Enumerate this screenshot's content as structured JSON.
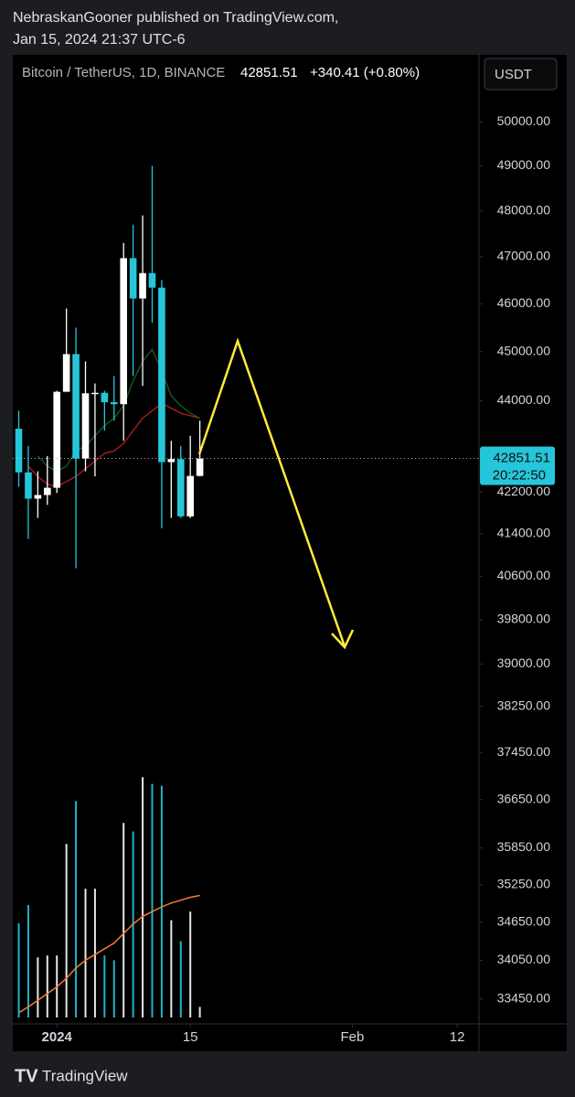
{
  "header": {
    "publisher": "NebraskanGooner published on TradingView.com,",
    "date": "Jan 15, 2024 21:37 UTC-6"
  },
  "footer": {
    "brand": "TradingView"
  },
  "chart_data": {
    "type": "candlestick",
    "symbol": "Bitcoin / TetherUS, 1D, BINANCE",
    "last_price": 42851.51,
    "change": "+340.41 (+0.80%)",
    "currency": "USDT",
    "countdown": "20:22:50",
    "x": [
      "2023-12-28",
      "2023-12-29",
      "2023-12-30",
      "2023-12-31",
      "2024-01-01",
      "2024-01-02",
      "2024-01-03",
      "2024-01-04",
      "2024-01-05",
      "2024-01-06",
      "2024-01-07",
      "2024-01-08",
      "2024-01-09",
      "2024-01-10",
      "2024-01-11",
      "2024-01-12",
      "2024-01-13",
      "2024-01-14",
      "2024-01-15",
      "2024-01-16"
    ],
    "open": [
      43440,
      42580,
      42070,
      42140,
      42280,
      44180,
      44950,
      42850,
      44150,
      44160,
      43970,
      43930,
      46970,
      46110,
      46650,
      46340,
      42780,
      42840,
      41730,
      42510
    ],
    "high": [
      43800,
      43100,
      42600,
      42900,
      44200,
      45900,
      45500,
      44800,
      44350,
      44200,
      44500,
      47300,
      47700,
      47900,
      49000,
      46500,
      43200,
      43100,
      43300,
      43600
    ],
    "low": [
      42300,
      41300,
      41700,
      41950,
      42180,
      44200,
      40750,
      42600,
      42500,
      43400,
      43600,
      43200,
      44500,
      44300,
      45600,
      41500,
      41700,
      41700,
      41700,
      42500
    ],
    "close": [
      42580,
      42070,
      42140,
      42280,
      44180,
      44950,
      42850,
      44150,
      44160,
      43970,
      43930,
      46970,
      46110,
      46650,
      46340,
      42780,
      42840,
      41730,
      42510,
      42851.51
    ],
    "up_color": "#ffffff",
    "down_color": "#26c6da",
    "ma": [
      {
        "color": "#b71c1c",
        "values": [
          null,
          42700,
          42500,
          42350,
          42300,
          42400,
          42500,
          42650,
          42800,
          42950,
          43000,
          43150,
          43400,
          43650,
          43800,
          43950,
          43850,
          43750,
          43700,
          43650
        ]
      },
      {
        "color": "#1b5e20",
        "values": [
          null,
          null,
          42900,
          42700,
          42600,
          42700,
          43000,
          43100,
          43300,
          43500,
          43650,
          43900,
          44400,
          44800,
          45050,
          44600,
          44100,
          43900,
          43750,
          43650
        ]
      }
    ],
    "volume": [
      99,
      118,
      63,
      65,
      65,
      182,
      227,
      135,
      135,
      65,
      60,
      204,
      195,
      252,
      245,
      243,
      102,
      80,
      111,
      11
    ],
    "volume_ma": {
      "color": "#f57c3a",
      "values": [
        5,
        11,
        18,
        25,
        32,
        41,
        52,
        60,
        66,
        72,
        78,
        88,
        98,
        106,
        111,
        116,
        120,
        123,
        126,
        128
      ]
    },
    "vlim": [
      0,
      1000
    ],
    "ylim": [
      33170,
      51340
    ],
    "log_scale": true,
    "yticks": [
      {
        "value": 50000,
        "label": "50000.00"
      },
      {
        "value": 49000,
        "label": "49000.00"
      },
      {
        "value": 48000,
        "label": "48000.00"
      },
      {
        "value": 47000,
        "label": "47000.00"
      },
      {
        "value": 46000,
        "label": "46000.00"
      },
      {
        "value": 45000,
        "label": "45000.00"
      },
      {
        "value": 44000,
        "label": "44000.00"
      },
      {
        "value": 42200,
        "label": "42200.00"
      },
      {
        "value": 41400,
        "label": "41400.00"
      },
      {
        "value": 40600,
        "label": "40600.00"
      },
      {
        "value": 39800,
        "label": "39800.00"
      },
      {
        "value": 39000,
        "label": "39000.00"
      },
      {
        "value": 38250,
        "label": "38250.00"
      },
      {
        "value": 37450,
        "label": "37450.00"
      },
      {
        "value": 36650,
        "label": "36650.00"
      },
      {
        "value": 35850,
        "label": "35850.00"
      },
      {
        "value": 35250,
        "label": "35250.00"
      },
      {
        "value": 34650,
        "label": "34650.00"
      },
      {
        "value": 34050,
        "label": "34050.00"
      },
      {
        "value": 33450,
        "label": "33450.00"
      }
    ],
    "xlim": [
      "2023-12-27T09:00",
      "2024-02-14T07:00"
    ],
    "xticks": [
      {
        "value": "2024-01-01",
        "label": "2024"
      },
      {
        "value": "2024-01-15",
        "label": "15"
      },
      {
        "value": "2024-02-01",
        "label": "Feb"
      },
      {
        "value": "2024-02-12",
        "label": "12"
      }
    ]
  }
}
